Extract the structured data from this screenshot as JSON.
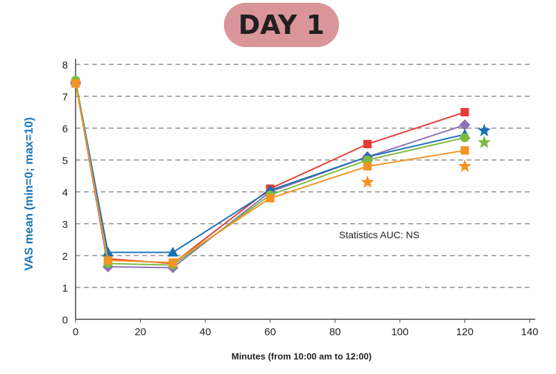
{
  "chart_data": {
    "type": "line",
    "title": "DAY 1",
    "xlabel": "Minutes (from 10:00 am to 12:00)",
    "ylabel": "VAS mean (min=0; max=10)",
    "xlim": [
      0,
      140
    ],
    "ylim": [
      0,
      8
    ],
    "xticks": [
      0,
      20,
      40,
      60,
      80,
      100,
      120,
      140
    ],
    "yticks": [
      0,
      1,
      2,
      3,
      4,
      5,
      6,
      7,
      8
    ],
    "grid": "horizontal dashed",
    "annotation": "Statistics AUC: NS",
    "x": [
      0,
      10,
      30,
      60,
      90,
      120
    ],
    "series": [
      {
        "color": "#e63b35",
        "marker": "square",
        "values": [
          7.45,
          1.9,
          1.75,
          4.1,
          5.5,
          6.5
        ]
      },
      {
        "color": "#8b72b8",
        "marker": "diamond",
        "values": [
          7.45,
          1.65,
          1.62,
          4.0,
          5.1,
          6.1
        ]
      },
      {
        "color": "#1a6fb8",
        "marker": "triangle",
        "values": [
          7.5,
          2.1,
          2.1,
          4.05,
          5.1,
          5.8
        ]
      },
      {
        "color": "#7dbb3e",
        "marker": "circle",
        "values": [
          7.5,
          1.75,
          1.7,
          3.9,
          5.0,
          5.7
        ]
      },
      {
        "color": "#f39322",
        "marker": "square",
        "values": [
          7.4,
          1.85,
          1.78,
          3.8,
          4.8,
          5.3
        ]
      }
    ],
    "significance_stars": [
      {
        "x": 126,
        "y": 5.92,
        "color": "#1a6fb8"
      },
      {
        "x": 126,
        "y": 5.55,
        "color": "#7dbb3e"
      },
      {
        "x": 90,
        "y": 4.3,
        "color": "#f39322"
      },
      {
        "x": 120,
        "y": 4.8,
        "color": "#f39322"
      }
    ]
  }
}
